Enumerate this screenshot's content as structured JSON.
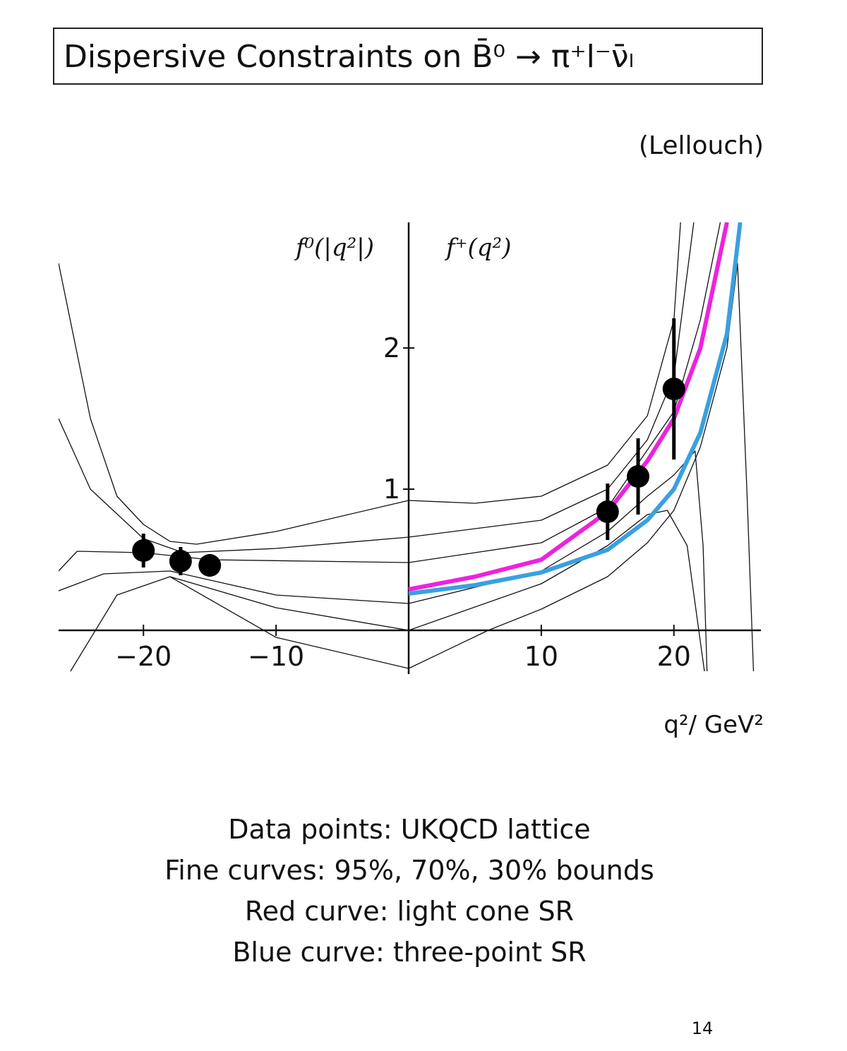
{
  "chart_data": {
    "type": "line",
    "title": "Dispersive Constraints on B̄⁰ → π⁺l⁻ν̄ₗ",
    "source": "(Lellouch)",
    "y_label_left": "f⁰(|q²|)",
    "y_label_right": "f⁺(q²)",
    "x_label": "q²/ GeV²",
    "xlim": [
      -26.4,
      26.4
    ],
    "ylim": [
      -0.285,
      2.89
    ],
    "xticks": [
      {
        "value": -20,
        "label": "−20"
      },
      {
        "value": -10,
        "label": "−10"
      },
      10,
      20
    ],
    "yticks": [
      1,
      2
    ],
    "series": [
      {
        "color": "#111111",
        "line_width": 1.3,
        "x": [
          -26.4,
          -24,
          -22,
          -20,
          -18,
          -16,
          -10,
          0
        ],
        "values": [
          2.6,
          1.5,
          0.95,
          0.75,
          0.63,
          0.61,
          0.7,
          0.92
        ]
      },
      {
        "color": "#111111",
        "line_width": 1.3,
        "x": [
          -26.4,
          -24,
          -20,
          -17,
          -10,
          0
        ],
        "values": [
          1.5,
          1.0,
          0.65,
          0.55,
          0.58,
          0.66
        ]
      },
      {
        "color": "#111111",
        "line_width": 1.3,
        "x": [
          -26.4,
          -25,
          -20,
          -15,
          0
        ],
        "values": [
          0.42,
          0.56,
          0.55,
          0.5,
          0.48
        ]
      },
      {
        "color": "#111111",
        "line_width": 1.3,
        "x": [
          -26.4,
          -23,
          -18,
          -10,
          0
        ],
        "values": [
          0.28,
          0.4,
          0.42,
          0.25,
          0.19
        ]
      },
      {
        "color": "#111111",
        "line_width": 1.3,
        "x": [
          -25.5,
          -22,
          -18,
          -10,
          0
        ],
        "values": [
          -0.29,
          0.25,
          0.38,
          0.16,
          0
        ]
      },
      {
        "color": "#111111",
        "line_width": 1.3,
        "x": [
          -18,
          -10,
          0
        ],
        "values": [
          0.38,
          -0.05,
          -0.27
        ]
      },
      {
        "color": "#111111",
        "line_width": 1.3,
        "x": [
          0,
          5,
          10,
          15,
          18,
          20,
          20.5
        ],
        "values": [
          0.92,
          0.9,
          0.95,
          1.17,
          1.52,
          2.2,
          2.89
        ]
      },
      {
        "color": "#111111",
        "line_width": 1.3,
        "x": [
          0,
          10,
          15,
          18,
          20,
          21.5
        ],
        "values": [
          0.66,
          0.78,
          1.0,
          1.35,
          1.8,
          2.89
        ]
      },
      {
        "color": "#111111",
        "line_width": 1.3,
        "x": [
          0,
          10,
          15,
          20,
          22,
          23.5
        ],
        "values": [
          0.48,
          0.62,
          0.87,
          1.55,
          2.2,
          2.89
        ]
      },
      {
        "color": "#111111",
        "line_width": 1.3,
        "x": [
          0,
          10,
          15,
          18,
          20,
          21.6,
          22.2,
          22.5
        ],
        "values": [
          0.19,
          0.42,
          0.7,
          0.95,
          1.1,
          1.27,
          0.6,
          -0.29
        ]
      },
      {
        "color": "#111111",
        "line_width": 1.3,
        "x": [
          0,
          10,
          15,
          18,
          19.5,
          21,
          22.3
        ],
        "values": [
          0,
          0.33,
          0.6,
          0.82,
          0.85,
          0.6,
          -0.29
        ]
      },
      {
        "color": "#111111",
        "line_width": 1.3,
        "x": [
          0,
          6,
          10,
          15,
          18,
          20,
          22,
          24,
          24.8,
          25.5,
          26
        ],
        "values": [
          -0.27,
          0,
          0.15,
          0.38,
          0.62,
          0.85,
          1.3,
          2.0,
          2.6,
          1.0,
          -0.29
        ]
      },
      {
        "color": "#ee22dd",
        "line_width": 6,
        "x": [
          0,
          5,
          10,
          15,
          18,
          20,
          22,
          24
        ],
        "values": [
          0.29,
          0.38,
          0.5,
          0.84,
          1.2,
          1.5,
          2.0,
          2.89
        ]
      },
      {
        "color": "#3aa0e0",
        "line_width": 6,
        "x": [
          0,
          5,
          10,
          15,
          18,
          20,
          22,
          24,
          25
        ],
        "values": [
          0.26,
          0.32,
          0.41,
          0.57,
          0.78,
          1.0,
          1.4,
          2.1,
          2.89
        ]
      }
    ],
    "points": {
      "color": "#000000",
      "x": [
        -20,
        -17.2,
        -15,
        15,
        17.3,
        20
      ],
      "values": [
        0.565,
        0.49,
        0.46,
        0.84,
        1.09,
        1.71
      ],
      "errors": [
        0.12,
        0.1,
        0.08,
        0.2,
        0.27,
        0.5
      ]
    },
    "notes": [
      "Data points: UKQCD lattice",
      "Fine curves: 95%, 70%, 30% bounds",
      "Red curve: light cone SR",
      "Blue curve: three-point SR"
    ],
    "page": "14"
  }
}
